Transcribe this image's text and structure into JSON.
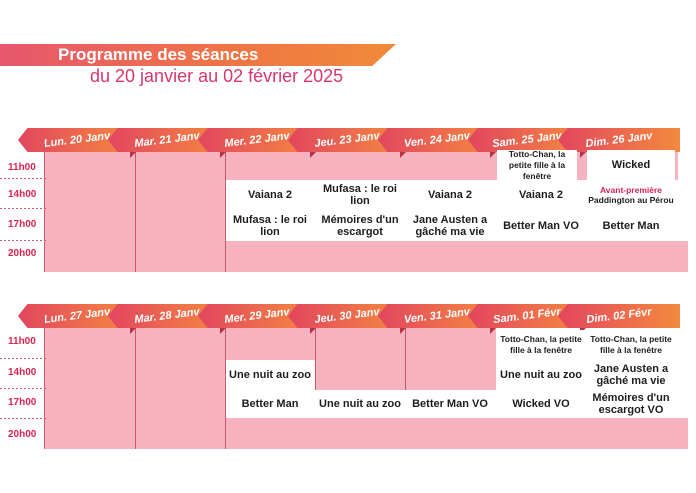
{
  "header": {
    "title": "Programme des séances",
    "subtitle": "du 20 janvier au 02 février 2025"
  },
  "times": [
    "11h00",
    "14h00",
    "17h00",
    "20h00"
  ],
  "weeks": [
    {
      "days": [
        "Lun. 20 Janv",
        "Mar. 21 Janv",
        "Mer. 22 Janv",
        "Jeu. 23 Janv",
        "Ven. 24 Janv",
        "Sam. 25 Janv",
        "Dim. 26 Janv"
      ],
      "sessions": {
        "sam_11": "Totto-Chan, la petite fille à la fenêtre",
        "dim_11": "Wicked",
        "mer_14": "Vaiana 2",
        "jeu_14": "Mufasa : le roi lion",
        "ven_14": "Vaiana 2",
        "sam_14": "Vaiana 2",
        "dim_14_tag": "Avant-première",
        "dim_14": "Paddington au Pérou",
        "mer_17": "Mufasa : le roi lion",
        "jeu_17": "Mémoires d'un escargot",
        "ven_17": "Jane Austen a gâché ma vie",
        "sam_17": "Better Man VO",
        "dim_17": "Better Man"
      }
    },
    {
      "days": [
        "Lun. 27 Janv",
        "Mar. 28 Janv",
        "Mer. 29 Janv",
        "Jeu. 30 Janv",
        "Ven. 31 Janv",
        "Sam. 01 Févr",
        "Dim. 02 Févr"
      ],
      "sessions": {
        "sam_11": "Totto-Chan, la petite fille à la fenêtre",
        "dim_11": "Totto-Chan, la petite fille à la fenêtre",
        "mer_14": "Une nuit au zoo",
        "sam_14": "Une nuit au zoo",
        "dim_14": "Jane Austen a gâché ma vie",
        "mer_17": "Better Man",
        "jeu_17": "Une nuit au zoo",
        "ven_17": "Better Man VO",
        "sam_17": "Wicked VO",
        "dim_17": "Mémoires d'un escargot VO"
      }
    }
  ],
  "colors": {
    "accent_pink": "#e2455f",
    "accent_orange": "#f28a3e",
    "grid_fill": "#f6b3bf",
    "time_red": "#d9244f"
  }
}
